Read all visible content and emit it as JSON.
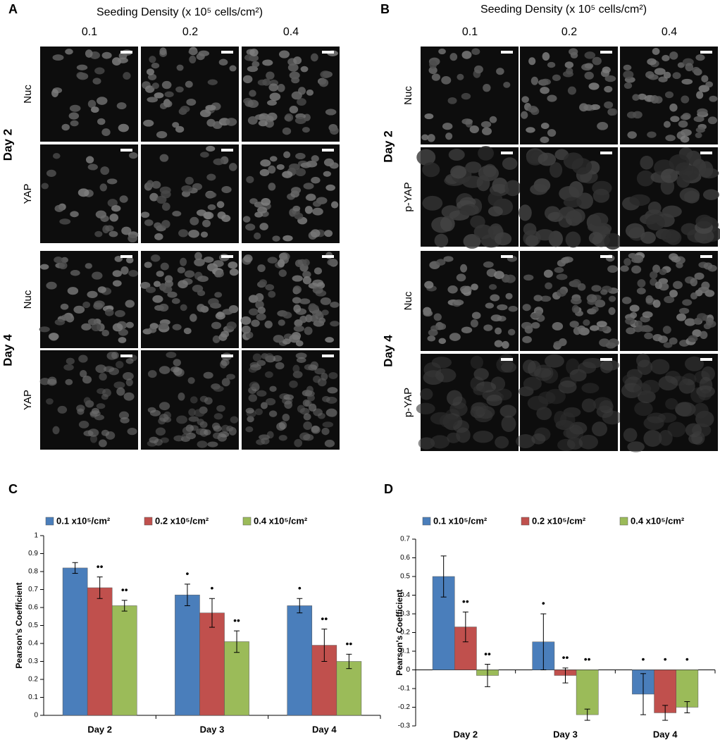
{
  "panel_a": {
    "label": "A",
    "title": "Seeding Density (x 10⁵ cells/cm²)",
    "columns": [
      "0.1",
      "0.2",
      "0.4"
    ],
    "day_labels": [
      "Day 2",
      "Day 4"
    ],
    "row_labels": [
      "Nuc",
      "YAP",
      "Nuc",
      "YAP"
    ]
  },
  "panel_b": {
    "label": "B",
    "title": "Seeding Density (x 10⁵ cells/cm²)",
    "columns": [
      "0.1",
      "0.2",
      "0.4"
    ],
    "day_labels": [
      "Day 2",
      "Day 4"
    ],
    "row_labels": [
      "Nuc",
      "p-YAP",
      "Nuc",
      "p-YAP"
    ]
  },
  "chart_data": [
    {
      "type": "bar",
      "label": "C",
      "y_label": "Pearson's Coefficient",
      "categories": [
        "Day 2",
        "Day 3",
        "Day 4"
      ],
      "ylim": [
        0,
        1
      ],
      "yticks": [
        0,
        0.1,
        0.2,
        0.3,
        0.4,
        0.5,
        0.6,
        0.7,
        0.8,
        0.9,
        1
      ],
      "series": [
        {
          "name": "0.1 x10⁵/cm²",
          "color": "#4a7ebb",
          "values": [
            0.82,
            0.67,
            0.61
          ],
          "errors": [
            0.03,
            0.06,
            0.04
          ],
          "markers": [
            null,
            "•",
            "•"
          ]
        },
        {
          "name": "0.2 x10⁵/cm²",
          "color": "#c0504d",
          "values": [
            0.71,
            0.57,
            0.39
          ],
          "errors": [
            0.06,
            0.08,
            0.09
          ],
          "markers": [
            "••",
            "•",
            "••"
          ]
        },
        {
          "name": "0.4 x10⁵/cm²",
          "color": "#9bbb59",
          "values": [
            0.61,
            0.41,
            0.3
          ],
          "errors": [
            0.03,
            0.06,
            0.04
          ],
          "markers": [
            "••",
            "••",
            "••"
          ]
        }
      ]
    },
    {
      "type": "bar",
      "label": "D",
      "y_label": "Pearson's Coefficient",
      "categories": [
        "Day 2",
        "Day 3",
        "Day 4"
      ],
      "ylim": [
        -0.3,
        0.7
      ],
      "yticks": [
        -0.3,
        -0.2,
        -0.1,
        0,
        0.1,
        0.2,
        0.3,
        0.4,
        0.5,
        0.6,
        0.7
      ],
      "series": [
        {
          "name": "0.1 x10⁵/cm²",
          "color": "#4a7ebb",
          "values": [
            0.5,
            0.15,
            -0.13
          ],
          "errors": [
            0.11,
            0.15,
            0.11
          ],
          "markers": [
            null,
            "•",
            "•"
          ]
        },
        {
          "name": "0.2 x10⁵/cm²",
          "color": "#c0504d",
          "values": [
            0.23,
            -0.03,
            -0.23
          ],
          "errors": [
            0.08,
            0.04,
            0.04
          ],
          "markers": [
            "••",
            "••",
            "•"
          ]
        },
        {
          "name": "0.4 x10⁵/cm²",
          "color": "#9bbb59",
          "values": [
            -0.03,
            -0.24,
            -0.2
          ],
          "errors": [
            0.06,
            0.03,
            0.03
          ],
          "markers": [
            "••",
            "••",
            "•"
          ]
        }
      ]
    }
  ]
}
